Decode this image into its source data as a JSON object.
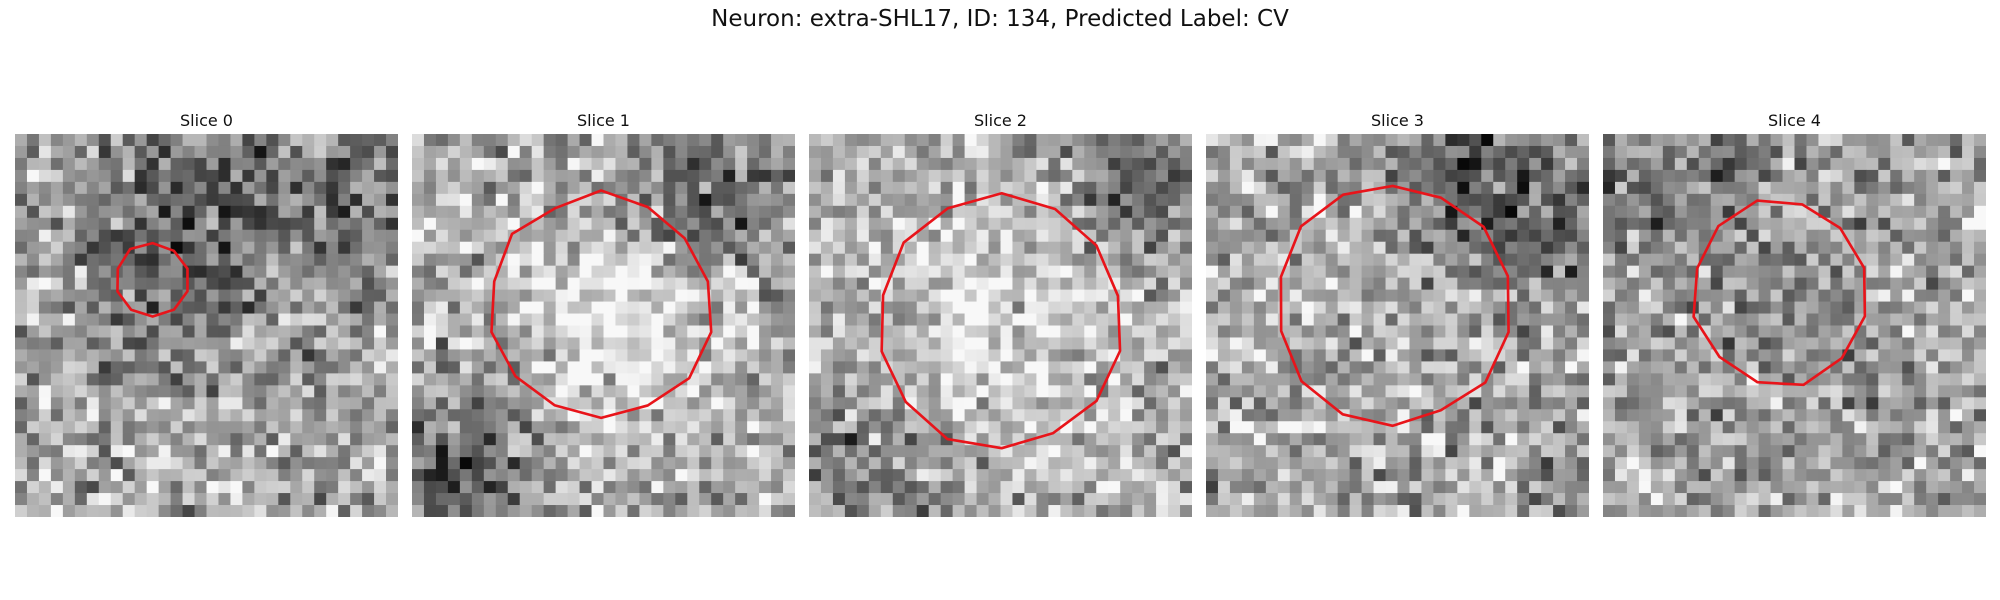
{
  "figure": {
    "title": "Neuron: extra-SHL17, ID: 134, Predicted Label: CV"
  },
  "panels": [
    {
      "title": "Slice 0"
    },
    {
      "title": "Slice 1"
    },
    {
      "title": "Slice 2"
    },
    {
      "title": "Slice 3"
    },
    {
      "title": "Slice 4"
    }
  ],
  "style": {
    "contour_color": "#e8141a",
    "colormap": "grayscale"
  }
}
